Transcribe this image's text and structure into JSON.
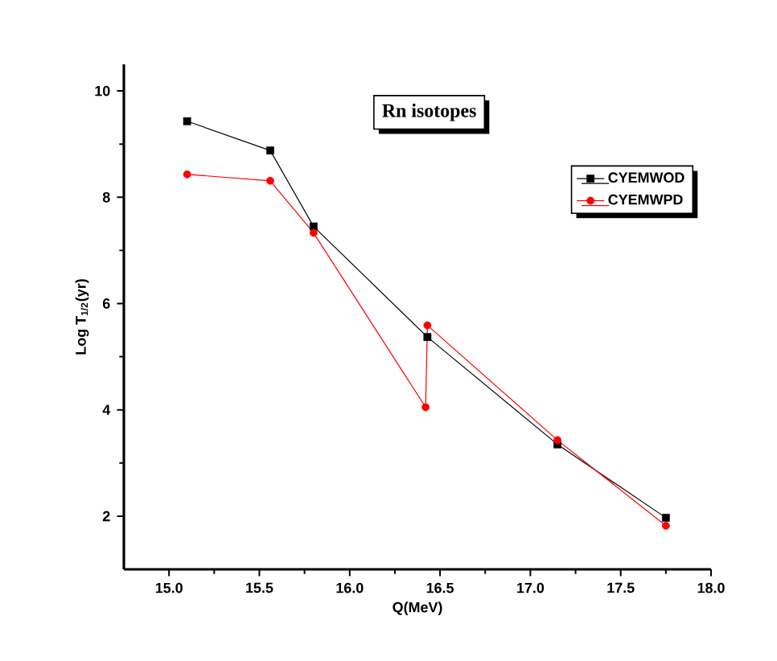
{
  "chart_data": {
    "type": "line",
    "title": "Rn isotopes",
    "xlabel": "Q(MeV)",
    "ylabel": "Log T$_{1/2}$(yr)",
    "xlim": [
      14.75,
      18.0
    ],
    "ylim": [
      1.0,
      10.5
    ],
    "xticks": [
      {
        "value": 15,
        "label": "15.0"
      },
      15.5,
      {
        "value": 16,
        "label": "16.0"
      },
      16.5,
      {
        "value": 17,
        "label": "17.0"
      },
      17.5,
      {
        "value": 18,
        "label": "18.0"
      }
    ],
    "yticks": [
      2,
      4,
      6,
      8,
      10
    ],
    "series": [
      {
        "name": "CYEMWOD",
        "color": "#000000",
        "marker": "square",
        "x": [
          15.1,
          15.56,
          15.8,
          16.43,
          17.15,
          17.75
        ],
        "values": [
          9.43,
          8.88,
          7.45,
          5.37,
          3.35,
          1.97
        ]
      },
      {
        "name": "CYEMWPD",
        "color": "#ff0000",
        "marker": "circle",
        "x": [
          15.1,
          15.56,
          15.8,
          16.42,
          16.43,
          17.15,
          17.75
        ],
        "values": [
          8.43,
          8.31,
          7.33,
          4.05,
          5.59,
          3.43,
          1.82
        ]
      }
    ],
    "legend": "top right",
    "grid": false,
    "line_style": "solid"
  }
}
